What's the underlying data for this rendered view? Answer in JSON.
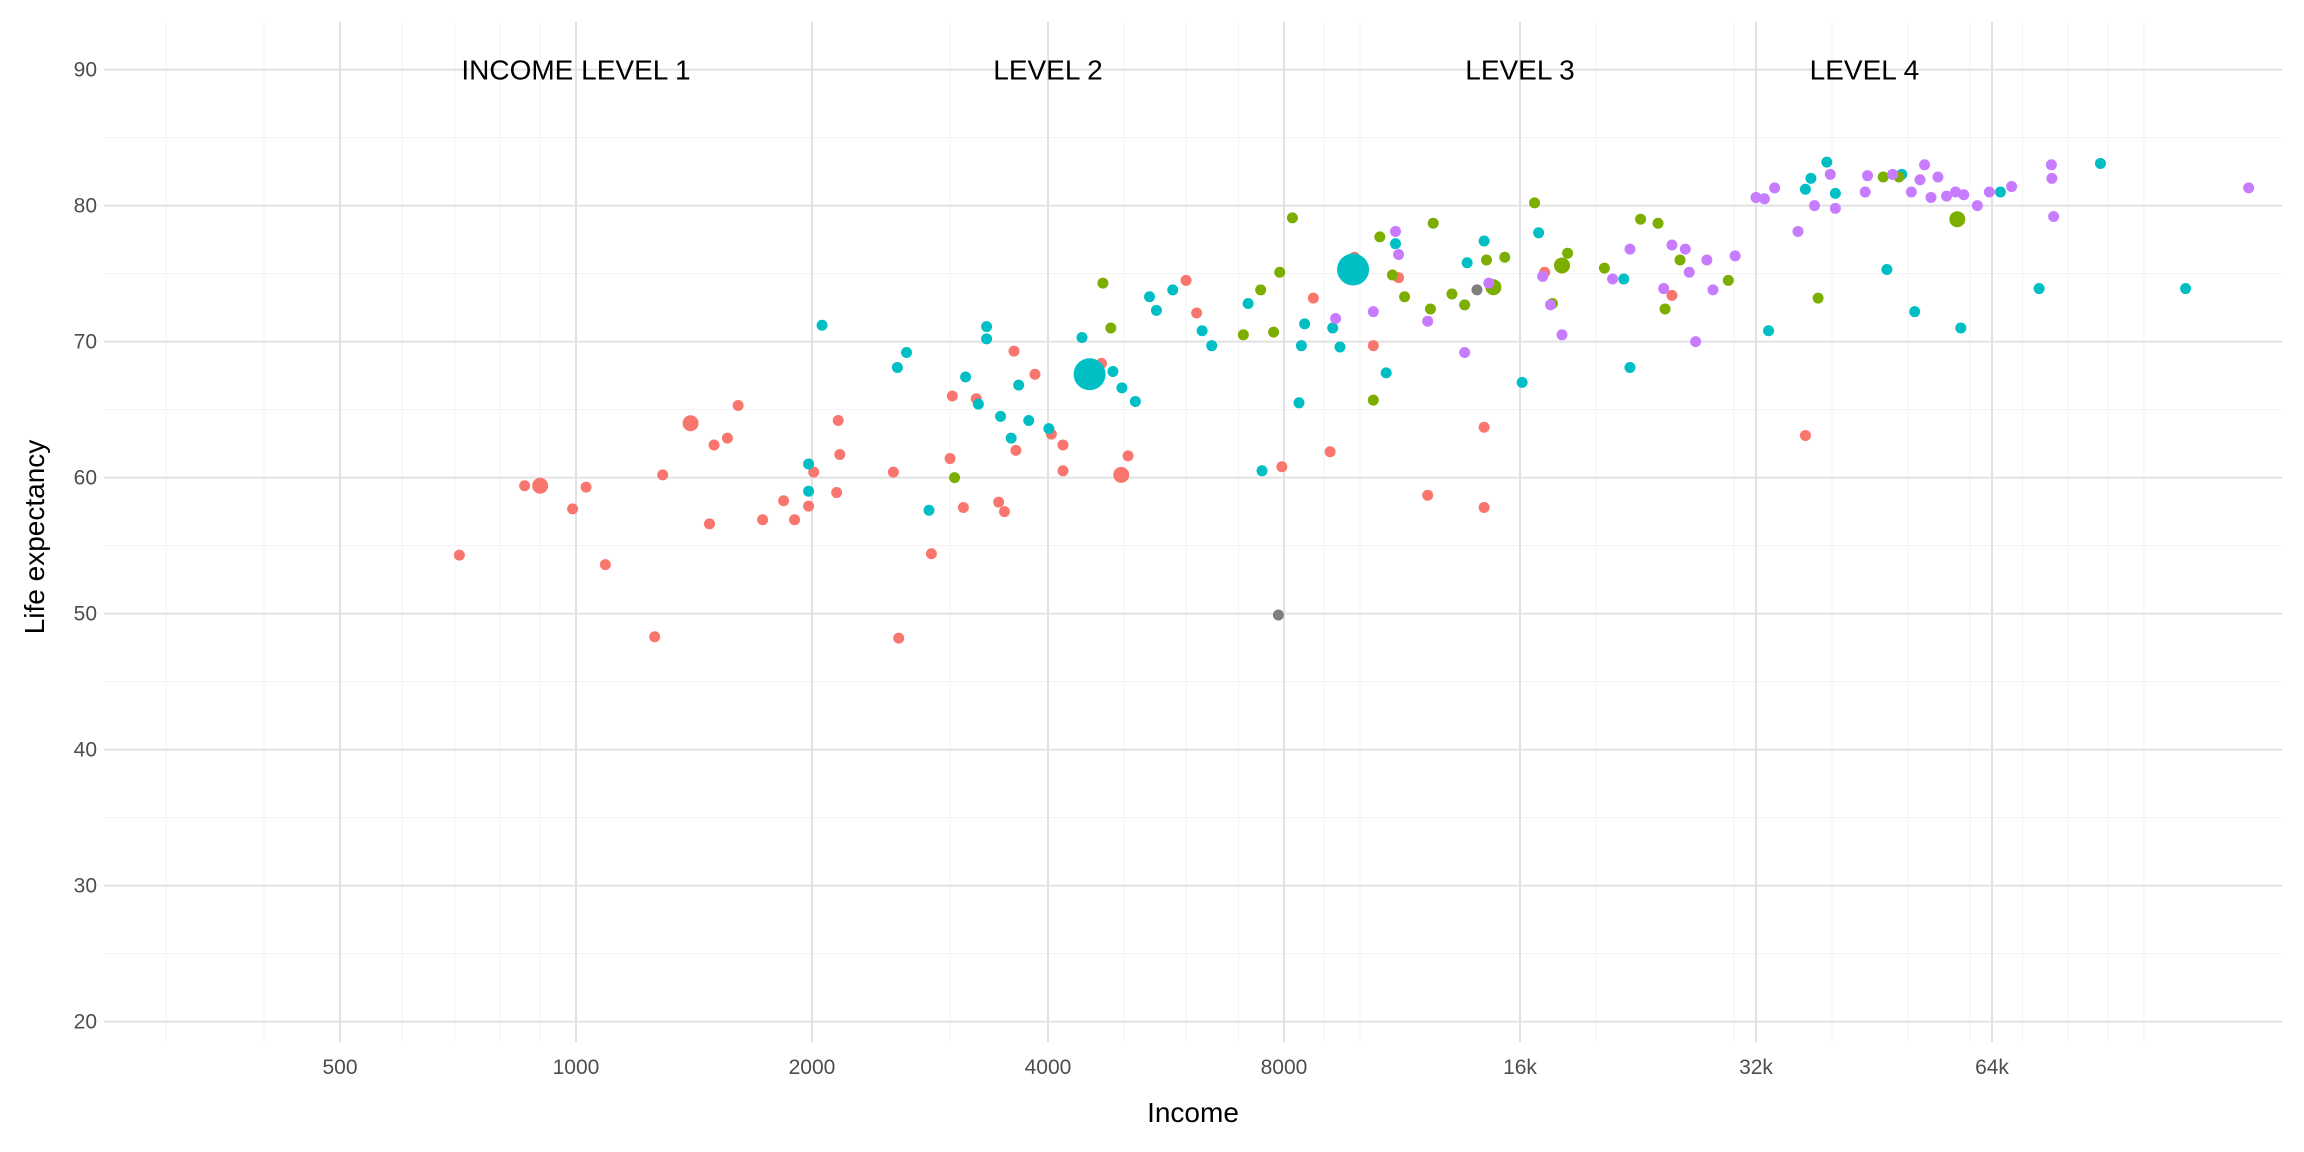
{
  "chart_data": {
    "type": "scatter",
    "title": "",
    "xlabel": "Income",
    "ylabel": "Life expectancy",
    "x_scale": "log2",
    "xlim": [
      250,
      150000
    ],
    "ylim": [
      18.5,
      93.5
    ],
    "x_ticks": [
      {
        "value": 500,
        "label": "500"
      },
      {
        "value": 1000,
        "label": "1000"
      },
      {
        "value": 2000,
        "label": "2000"
      },
      {
        "value": 4000,
        "label": "4000"
      },
      {
        "value": 8000,
        "label": "8000"
      },
      {
        "value": 16000,
        "label": "16k"
      },
      {
        "value": 32000,
        "label": "32k"
      },
      {
        "value": 64000,
        "label": "64k"
      }
    ],
    "y_ticks": [
      {
        "value": 20,
        "label": "20"
      },
      {
        "value": 30,
        "label": "30"
      },
      {
        "value": 40,
        "label": "40"
      },
      {
        "value": 50,
        "label": "50"
      },
      {
        "value": 60,
        "label": "60"
      },
      {
        "value": 70,
        "label": "70"
      },
      {
        "value": 80,
        "label": "80"
      },
      {
        "value": 90,
        "label": "90"
      }
    ],
    "grid": true,
    "legend": "none",
    "annotations": [
      {
        "text": "INCOME LEVEL 1",
        "x": 1000,
        "y": 90
      },
      {
        "text": "LEVEL 2",
        "x": 4000,
        "y": 90
      },
      {
        "text": "LEVEL 3",
        "x": 16000,
        "y": 90
      },
      {
        "text": "LEVEL 4",
        "x": 44000,
        "y": 90
      }
    ],
    "colors": {
      "a": "#F8766D",
      "b": "#00BFC4",
      "c": "#7CAE00",
      "d": "#C77CFF",
      "e": "#7F7F7F"
    },
    "points": [
      [
        "a",
        710,
        54.3,
        1
      ],
      [
        "a",
        860,
        59.4,
        1
      ],
      [
        "a",
        900,
        59.4,
        2
      ],
      [
        "a",
        990,
        57.7,
        1
      ],
      [
        "a",
        1030,
        59.3,
        1
      ],
      [
        "a",
        1090,
        53.6,
        1
      ],
      [
        "a",
        1260,
        48.3,
        1
      ],
      [
        "a",
        1290,
        60.2,
        1
      ],
      [
        "a",
        1400,
        64.0,
        2
      ],
      [
        "a",
        1480,
        56.6,
        1
      ],
      [
        "a",
        1500,
        62.4,
        1
      ],
      [
        "a",
        1560,
        62.9,
        1
      ],
      [
        "a",
        1610,
        65.3,
        1
      ],
      [
        "a",
        1730,
        56.9,
        1
      ],
      [
        "a",
        1840,
        58.3,
        1
      ],
      [
        "a",
        1900,
        56.9,
        1
      ],
      [
        "a",
        1980,
        57.9,
        1
      ],
      [
        "a",
        2010,
        60.4,
        1
      ],
      [
        "a",
        2170,
        61.7,
        1
      ],
      [
        "a",
        2150,
        58.9,
        1
      ],
      [
        "a",
        2160,
        64.2,
        1
      ],
      [
        "a",
        2540,
        60.4,
        1
      ],
      [
        "a",
        2580,
        48.2,
        1
      ],
      [
        "a",
        2840,
        54.4,
        1
      ],
      [
        "a",
        3000,
        61.4,
        1
      ],
      [
        "a",
        3020,
        66.0,
        1
      ],
      [
        "a",
        3120,
        57.8,
        1
      ],
      [
        "a",
        3240,
        65.8,
        1
      ],
      [
        "a",
        3460,
        58.2,
        1
      ],
      [
        "a",
        3520,
        57.5,
        1
      ],
      [
        "a",
        3620,
        69.3,
        1
      ],
      [
        "a",
        3640,
        62.0,
        1
      ],
      [
        "a",
        3850,
        67.6,
        1
      ],
      [
        "a",
        4040,
        63.2,
        1
      ],
      [
        "a",
        4180,
        62.4,
        1
      ],
      [
        "a",
        4180,
        60.5,
        1
      ],
      [
        "a",
        4680,
        68.4,
        1
      ],
      [
        "a",
        4960,
        60.2,
        2
      ],
      [
        "a",
        5060,
        61.6,
        1
      ],
      [
        "a",
        6000,
        74.5,
        1
      ],
      [
        "a",
        6190,
        72.1,
        1
      ],
      [
        "a",
        7950,
        60.8,
        1
      ],
      [
        "a",
        8720,
        73.2,
        1
      ],
      [
        "a",
        9160,
        61.9,
        1
      ],
      [
        "a",
        9840,
        76.2,
        1
      ],
      [
        "a",
        10400,
        69.7,
        1
      ],
      [
        "a",
        11200,
        74.7,
        1
      ],
      [
        "a",
        12200,
        58.7,
        1
      ],
      [
        "a",
        14400,
        63.7,
        1
      ],
      [
        "a",
        14400,
        57.8,
        1
      ],
      [
        "a",
        17200,
        75.1,
        1
      ],
      [
        "a",
        25000,
        73.4,
        1
      ],
      [
        "a",
        37000,
        63.1,
        1
      ],
      [
        "b",
        1980,
        61.0,
        1
      ],
      [
        "b",
        1980,
        59.0,
        1
      ],
      [
        "b",
        2060,
        71.2,
        1
      ],
      [
        "b",
        2570,
        68.1,
        1
      ],
      [
        "b",
        2640,
        69.2,
        1
      ],
      [
        "b",
        2820,
        57.6,
        1
      ],
      [
        "b",
        3140,
        67.4,
        1
      ],
      [
        "b",
        3260,
        65.4,
        1
      ],
      [
        "b",
        3340,
        71.1,
        1
      ],
      [
        "b",
        3340,
        70.2,
        1
      ],
      [
        "b",
        3480,
        64.5,
        1
      ],
      [
        "b",
        3590,
        62.9,
        1
      ],
      [
        "b",
        3670,
        66.8,
        1
      ],
      [
        "b",
        3780,
        64.2,
        1
      ],
      [
        "b",
        4010,
        63.6,
        1
      ],
      [
        "b",
        4420,
        70.3,
        1
      ],
      [
        "b",
        4520,
        67.6,
        3
      ],
      [
        "b",
        4840,
        67.8,
        1
      ],
      [
        "b",
        4970,
        66.6,
        1
      ],
      [
        "b",
        5170,
        65.6,
        1
      ],
      [
        "b",
        5390,
        73.3,
        1
      ],
      [
        "b",
        5500,
        72.3,
        1
      ],
      [
        "b",
        5770,
        73.8,
        1
      ],
      [
        "b",
        6290,
        70.8,
        1
      ],
      [
        "b",
        6470,
        69.7,
        1
      ],
      [
        "b",
        7200,
        72.8,
        1
      ],
      [
        "b",
        7500,
        60.5,
        1
      ],
      [
        "b",
        8360,
        65.5,
        1
      ],
      [
        "b",
        8420,
        69.7,
        1
      ],
      [
        "b",
        8500,
        71.3,
        1
      ],
      [
        "b",
        9230,
        71.0,
        1
      ],
      [
        "b",
        9430,
        69.6,
        1
      ],
      [
        "b",
        9800,
        75.3,
        3
      ],
      [
        "b",
        10800,
        67.7,
        1
      ],
      [
        "b",
        11100,
        77.2,
        1
      ],
      [
        "b",
        13700,
        75.8,
        1
      ],
      [
        "b",
        14400,
        77.4,
        1
      ],
      [
        "b",
        16100,
        67.0,
        1
      ],
      [
        "b",
        16900,
        78.0,
        1
      ],
      [
        "b",
        18200,
        75.7,
        1
      ],
      [
        "b",
        21700,
        74.6,
        1
      ],
      [
        "b",
        22100,
        68.1,
        1
      ],
      [
        "b",
        33200,
        70.8,
        1
      ],
      [
        "b",
        37000,
        81.2,
        1
      ],
      [
        "b",
        37600,
        82.0,
        1
      ],
      [
        "b",
        39400,
        83.2,
        1
      ],
      [
        "b",
        40400,
        80.9,
        1
      ],
      [
        "b",
        47000,
        75.3,
        1
      ],
      [
        "b",
        49100,
        82.3,
        1
      ],
      [
        "b",
        51000,
        72.2,
        1
      ],
      [
        "b",
        58400,
        71.0,
        1
      ],
      [
        "b",
        65600,
        81.0,
        1
      ],
      [
        "b",
        73500,
        73.9,
        1
      ],
      [
        "b",
        88000,
        83.1,
        1
      ],
      [
        "b",
        113000,
        73.9,
        1
      ],
      [
        "c",
        3040,
        60.0,
        1
      ],
      [
        "c",
        4700,
        74.3,
        1
      ],
      [
        "c",
        4810,
        71.0,
        1
      ],
      [
        "c",
        7100,
        70.5,
        1
      ],
      [
        "c",
        7470,
        73.8,
        1
      ],
      [
        "c",
        7900,
        75.1,
        1
      ],
      [
        "c",
        7760,
        70.7,
        1
      ],
      [
        "c",
        8200,
        79.1,
        1
      ],
      [
        "c",
        10400,
        65.7,
        1
      ],
      [
        "c",
        10600,
        77.7,
        1
      ],
      [
        "c",
        11000,
        74.9,
        1
      ],
      [
        "c",
        11400,
        73.3,
        1
      ],
      [
        "c",
        12300,
        72.4,
        1
      ],
      [
        "c",
        12400,
        78.7,
        1
      ],
      [
        "c",
        13100,
        73.5,
        1
      ],
      [
        "c",
        13600,
        72.7,
        1
      ],
      [
        "c",
        14500,
        76.0,
        1
      ],
      [
        "c",
        14800,
        74.0,
        2
      ],
      [
        "c",
        15300,
        76.2,
        1
      ],
      [
        "c",
        16700,
        80.2,
        1
      ],
      [
        "c",
        17600,
        72.8,
        1
      ],
      [
        "c",
        18100,
        75.6,
        2
      ],
      [
        "c",
        18400,
        76.5,
        1
      ],
      [
        "c",
        20500,
        75.4,
        1
      ],
      [
        "c",
        22800,
        79.0,
        1
      ],
      [
        "c",
        24000,
        78.7,
        1
      ],
      [
        "c",
        24500,
        72.4,
        1
      ],
      [
        "c",
        25600,
        76.0,
        1
      ],
      [
        "c",
        29500,
        74.5,
        1
      ],
      [
        "c",
        38400,
        73.2,
        1
      ],
      [
        "c",
        46500,
        82.1,
        1
      ],
      [
        "c",
        48700,
        82.1,
        1
      ],
      [
        "c",
        57800,
        79.0,
        2
      ],
      [
        "d",
        9310,
        71.7,
        1
      ],
      [
        "d",
        10400,
        72.2,
        1
      ],
      [
        "d",
        11100,
        78.1,
        1
      ],
      [
        "d",
        11200,
        76.4,
        1
      ],
      [
        "d",
        12200,
        71.5,
        1
      ],
      [
        "d",
        13600,
        69.2,
        1
      ],
      [
        "d",
        14600,
        74.3,
        1
      ],
      [
        "d",
        17100,
        74.8,
        1
      ],
      [
        "d",
        17500,
        72.7,
        1
      ],
      [
        "d",
        18100,
        70.5,
        1
      ],
      [
        "d",
        21000,
        74.6,
        1
      ],
      [
        "d",
        22100,
        76.8,
        1
      ],
      [
        "d",
        24400,
        73.9,
        1
      ],
      [
        "d",
        25000,
        77.1,
        1
      ],
      [
        "d",
        26000,
        76.8,
        1
      ],
      [
        "d",
        26300,
        75.1,
        1
      ],
      [
        "d",
        26800,
        70.0,
        1
      ],
      [
        "d",
        27700,
        76.0,
        1
      ],
      [
        "d",
        28200,
        73.8,
        1
      ],
      [
        "d",
        30100,
        76.3,
        1
      ],
      [
        "d",
        32000,
        80.6,
        1
      ],
      [
        "d",
        32800,
        80.5,
        1
      ],
      [
        "d",
        33800,
        81.3,
        1
      ],
      [
        "d",
        36200,
        78.1,
        1
      ],
      [
        "d",
        38000,
        80.0,
        1
      ],
      [
        "d",
        39800,
        82.3,
        1
      ],
      [
        "d",
        40400,
        79.8,
        1
      ],
      [
        "d",
        44100,
        81.0,
        1
      ],
      [
        "d",
        44400,
        82.2,
        1
      ],
      [
        "d",
        47800,
        82.3,
        1
      ],
      [
        "d",
        50500,
        81.0,
        1
      ],
      [
        "d",
        51800,
        81.9,
        1
      ],
      [
        "d",
        52500,
        83.0,
        1
      ],
      [
        "d",
        53500,
        80.6,
        1
      ],
      [
        "d",
        54600,
        82.1,
        1
      ],
      [
        "d",
        56000,
        80.7,
        1
      ],
      [
        "d",
        57500,
        81.0,
        1
      ],
      [
        "d",
        58900,
        80.8,
        1
      ],
      [
        "d",
        61300,
        80.0,
        1
      ],
      [
        "d",
        63500,
        81.0,
        1
      ],
      [
        "d",
        67800,
        81.4,
        1
      ],
      [
        "d",
        76200,
        83.0,
        1
      ],
      [
        "d",
        76300,
        82.0,
        1
      ],
      [
        "d",
        76700,
        79.2,
        1
      ],
      [
        "d",
        136000,
        81.3,
        1
      ],
      [
        "e",
        7870,
        49.9,
        1
      ],
      [
        "e",
        14100,
        73.8,
        1
      ]
    ]
  }
}
